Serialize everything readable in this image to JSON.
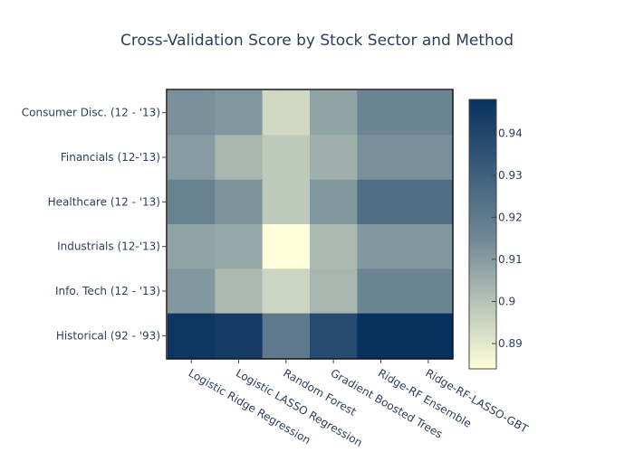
{
  "chart_data": {
    "type": "heatmap",
    "title": "Cross-Validation Score by Stock Sector and Method",
    "xlabel": "",
    "ylabel": "",
    "x_categories": [
      "Logistic Ridge Regression",
      "Logistic LASSO Regression",
      "Random Forest",
      "Gradient Boosted Trees",
      "Ridge-RF Ensemble",
      "Ridge-RF-LASSO-GBT"
    ],
    "y_categories": [
      "Consumer Disc. (12 - '13)",
      "Financials (12-'13)",
      "Healthcare (12 - '13)",
      "Industrials (12-'13)",
      "Info. Tech (12 - '13)",
      "Historical (92 - '93)"
    ],
    "values": [
      [
        0.913,
        0.911,
        0.894,
        0.908,
        0.916,
        0.916
      ],
      [
        0.91,
        0.903,
        0.898,
        0.905,
        0.913,
        0.913
      ],
      [
        0.917,
        0.912,
        0.898,
        0.911,
        0.925,
        0.925
      ],
      [
        0.908,
        0.907,
        0.884,
        0.902,
        0.911,
        0.911
      ],
      [
        0.911,
        0.902,
        0.895,
        0.903,
        0.916,
        0.916
      ],
      [
        0.946,
        0.944,
        0.92,
        0.938,
        0.948,
        0.948
      ]
    ],
    "colorbar": {
      "range": [
        0.884,
        0.948
      ],
      "ticks": [
        0.89,
        0.9,
        0.91,
        0.92,
        0.93,
        0.94
      ],
      "tick_labels": [
        "0.89",
        "0.9",
        "0.91",
        "0.92",
        "0.93",
        "0.94"
      ],
      "colorscale": [
        "#ffffd9",
        "#6b8594",
        "#08315f"
      ]
    }
  }
}
